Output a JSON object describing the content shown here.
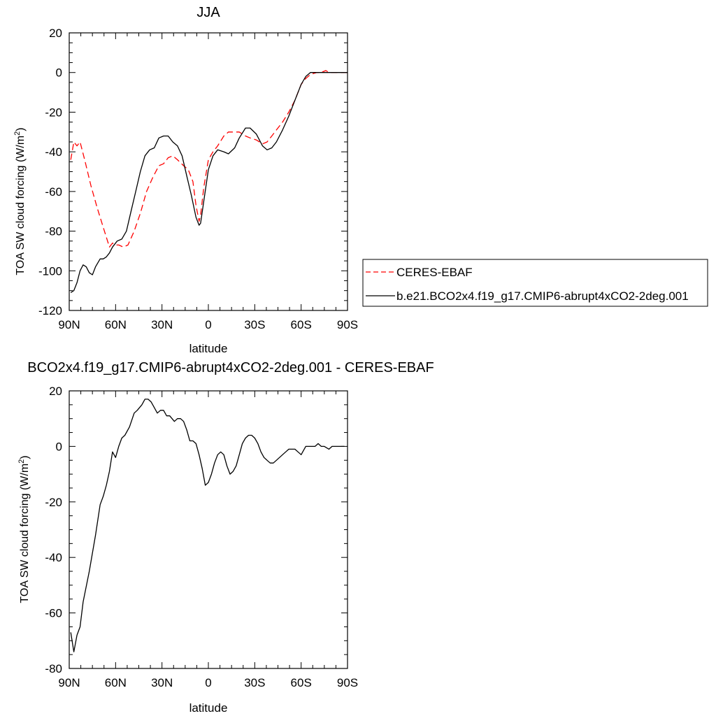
{
  "chart_data": [
    {
      "type": "line",
      "title": "JJA",
      "xlabel": "latitude",
      "ylabel": "TOA SW cloud forcing (W/m",
      "ylabel_sup": "2",
      "ylabel_tail": ")",
      "xlim": [
        90,
        -90
      ],
      "ylim": [
        -120,
        20
      ],
      "xticks": [
        90,
        60,
        30,
        0,
        -30,
        -60,
        -90
      ],
      "xticklabels": [
        "90N",
        "60N",
        "30N",
        "0",
        "30S",
        "60S",
        "90S"
      ],
      "yticks": [
        20,
        0,
        -20,
        -40,
        -60,
        -80,
        -100,
        -120
      ],
      "yticklabels": [
        "20",
        "0",
        "-20",
        "-40",
        "-60",
        "-80",
        "-100",
        "-120"
      ],
      "legend_position": "right",
      "series": [
        {
          "name": "CERES-EBAF",
          "color": "#ff0000",
          "dash": "dashed",
          "x": [
            89,
            87,
            85,
            83,
            80,
            76,
            72,
            68,
            64,
            62,
            60,
            58,
            55,
            52,
            48,
            44,
            40,
            36,
            32,
            29,
            26,
            23,
            20,
            16,
            13,
            10,
            8,
            6,
            5,
            3,
            0,
            -3,
            -6,
            -10,
            -13,
            -17,
            -20,
            -24,
            -27,
            -31,
            -35,
            -38,
            -41,
            -44,
            -48,
            -52,
            -56,
            -60,
            -63,
            -66,
            -70,
            -73,
            -76,
            -78,
            -80,
            -82,
            -85,
            -88,
            -90
          ],
          "y": [
            -44,
            -35,
            -37,
            -35,
            -44,
            -57,
            -68,
            -78,
            -88,
            -86,
            -87,
            -87,
            -88,
            -87,
            -80,
            -71,
            -60,
            -53,
            -47,
            -46,
            -43,
            -42,
            -44,
            -47,
            -49,
            -55,
            -67,
            -75,
            -72,
            -58,
            -44,
            -40,
            -37,
            -32,
            -30,
            -30,
            -30,
            -32,
            -33,
            -34,
            -36,
            -35,
            -32,
            -29,
            -25,
            -20,
            -14,
            -6,
            -3,
            -1,
            0,
            0,
            1,
            0,
            0,
            0,
            0,
            0,
            0
          ]
        },
        {
          "name": "b.e21.BCO2x4.f19_g17.CMIP6-abrupt4xCO2-2deg.001",
          "color": "#000000",
          "dash": "solid",
          "x": [
            89,
            87,
            85,
            83,
            81,
            79,
            77,
            75,
            73,
            70,
            68,
            66,
            64,
            62,
            59,
            56,
            53,
            50,
            47,
            44,
            41,
            38,
            35,
            32,
            29,
            26,
            23,
            20,
            17,
            14,
            11,
            8,
            6,
            5,
            3,
            0,
            -3,
            -6,
            -10,
            -13,
            -17,
            -20,
            -24,
            -27,
            -31,
            -35,
            -38,
            -41,
            -44,
            -48,
            -52,
            -56,
            -60,
            -63,
            -66,
            -70,
            -73,
            -76,
            -78,
            -80,
            -82,
            -85,
            -88,
            -90
          ],
          "y": [
            -111,
            -110,
            -106,
            -100,
            -97,
            -98,
            -101,
            -102,
            -98,
            -94,
            -94,
            -93,
            -91,
            -88,
            -85,
            -84,
            -80,
            -70,
            -60,
            -50,
            -42,
            -39,
            -38,
            -33,
            -32,
            -32,
            -35,
            -37,
            -42,
            -52,
            -62,
            -73,
            -77,
            -76,
            -65,
            -49,
            -42,
            -39,
            -40,
            -41,
            -38,
            -33,
            -28,
            -28,
            -31,
            -37,
            -39,
            -38,
            -35,
            -29,
            -22,
            -14,
            -6,
            -2,
            0,
            0,
            0,
            0,
            0,
            0,
            0,
            0,
            0,
            0
          ]
        }
      ]
    },
    {
      "type": "line",
      "title": "BCO2x4.f19_g17.CMIP6-abrupt4xCO2-2deg.001 - CERES-EBAF",
      "xlabel": "latitude",
      "ylabel": "TOA SW cloud forcing (W/m",
      "ylabel_sup": "2",
      "ylabel_tail": ")",
      "xlim": [
        90,
        -90
      ],
      "ylim": [
        -80,
        20
      ],
      "xticks": [
        90,
        60,
        30,
        0,
        -30,
        -60,
        -90
      ],
      "xticklabels": [
        "90N",
        "60N",
        "30N",
        "0",
        "30S",
        "60S",
        "90S"
      ],
      "yticks": [
        20,
        0,
        -20,
        -40,
        -60,
        -80
      ],
      "yticklabels": [
        "20",
        "0",
        "-20",
        "-40",
        "-60",
        "-80"
      ],
      "series": [
        {
          "color": "#000000",
          "dash": "solid",
          "x": [
            89,
            87,
            85,
            83,
            81,
            77,
            73,
            70,
            68,
            66,
            64,
            62,
            60,
            58,
            56,
            54,
            51,
            48,
            46,
            43,
            41,
            39,
            37,
            35,
            33,
            31,
            29,
            27,
            25,
            22,
            20,
            18,
            16,
            14,
            12,
            10,
            8,
            6,
            4,
            2,
            0,
            -2,
            -4,
            -6,
            -8,
            -10,
            -12,
            -14,
            -16,
            -18,
            -20,
            -22,
            -24,
            -26,
            -28,
            -30,
            -32,
            -34,
            -36,
            -38,
            -40,
            -42,
            -44,
            -46,
            -48,
            -50,
            -52,
            -54,
            -56,
            -58,
            -60,
            -61,
            -63,
            -65,
            -67,
            -69,
            -71,
            -73,
            -75,
            -78,
            -80,
            -82,
            -85,
            -88
          ],
          "y": [
            -67,
            -74,
            -68,
            -65,
            -56,
            -45,
            -32,
            -21,
            -18,
            -14,
            -9,
            -2,
            -4,
            0,
            3,
            4,
            7,
            12,
            13,
            15,
            17,
            17,
            16,
            14,
            12,
            13,
            13,
            11,
            11,
            9,
            10,
            10,
            9,
            6,
            2,
            2,
            1,
            -3,
            -8,
            -14,
            -13,
            -10,
            -6,
            -3,
            -2,
            -3,
            -7,
            -10,
            -9,
            -7,
            -3,
            1,
            3,
            4,
            4,
            3,
            1,
            -2,
            -4,
            -5,
            -6,
            -6,
            -5,
            -4,
            -3,
            -2,
            -1,
            -1,
            -1,
            -2,
            -3,
            -2,
            0,
            0,
            0,
            0,
            1,
            0,
            0,
            -1,
            0,
            0,
            0,
            0
          ]
        }
      ]
    }
  ]
}
